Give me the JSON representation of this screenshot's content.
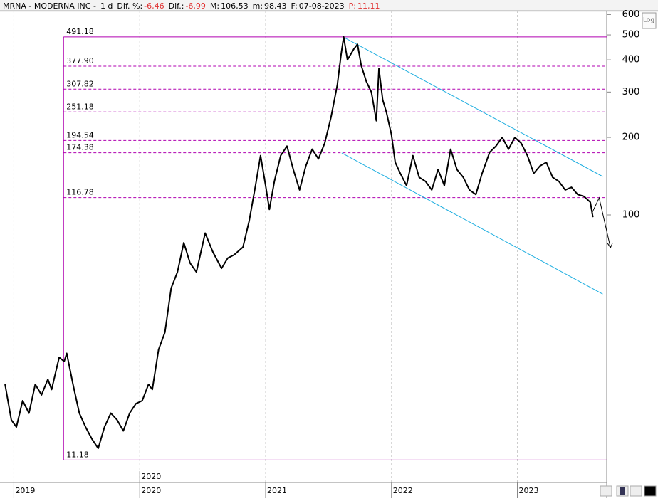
{
  "header": {
    "symbol": "MRNA - MODERNA INC -",
    "period": "1 d",
    "dif_pct_label": "Dif. %:",
    "dif_pct": "-6,46",
    "dif_label": "Dif.:",
    "dif": "-6,99",
    "max_label": "M:",
    "max": "106,53",
    "min_label": "m:",
    "min": "98,43",
    "date_label": "F:",
    "date": "07-08-2023",
    "p_label": "P:",
    "p": "11,11"
  },
  "log_button": "Log",
  "chart_data": {
    "type": "line",
    "log_scale": true,
    "color": "#000000",
    "xlim": [
      2018.89,
      2023.71
    ],
    "xticks": [
      2019,
      2020,
      2021,
      2022,
      2023
    ],
    "ylim": [
      9.14,
      621
    ],
    "yticks": [
      100,
      200,
      300,
      400,
      500,
      600
    ],
    "x_marker": {
      "value": 2020,
      "label": "2020"
    },
    "series": [
      {
        "name": "MRNA",
        "color": "#000000",
        "x": [
          2018.93,
          2018.98,
          2019.02,
          2019.07,
          2019.12,
          2019.17,
          2019.22,
          2019.27,
          2019.3,
          2019.36,
          2019.4,
          2019.42,
          2019.47,
          2019.52,
          2019.57,
          2019.62,
          2019.67,
          2019.72,
          2019.77,
          2019.82,
          2019.87,
          2019.92,
          2019.97,
          2020.02,
          2020.07,
          2020.1,
          2020.15,
          2020.2,
          2020.25,
          2020.3,
          2020.35,
          2020.4,
          2020.45,
          2020.52,
          2020.58,
          2020.65,
          2020.7,
          2020.75,
          2020.82,
          2020.87,
          2020.92,
          2020.96,
          2021.0,
          2021.03,
          2021.07,
          2021.12,
          2021.17,
          2021.22,
          2021.27,
          2021.32,
          2021.37,
          2021.42,
          2021.47,
          2021.52,
          2021.57,
          2021.6,
          2021.62,
          2021.65,
          2021.7,
          2021.73,
          2021.76,
          2021.8,
          2021.84,
          2021.88,
          2021.9,
          2021.93,
          2021.96,
          2022.0,
          2022.03,
          2022.07,
          2022.12,
          2022.17,
          2022.22,
          2022.27,
          2022.32,
          2022.37,
          2022.42,
          2022.47,
          2022.52,
          2022.57,
          2022.62,
          2022.67,
          2022.72,
          2022.78,
          2022.83,
          2022.88,
          2022.93,
          2022.98,
          2023.03,
          2023.08,
          2023.13,
          2023.18,
          2023.23,
          2023.28,
          2023.33,
          2023.38,
          2023.43,
          2023.48,
          2023.53,
          2023.58,
          2023.6
        ],
        "values": [
          22,
          16,
          15,
          19,
          17,
          22,
          20,
          23,
          21,
          28,
          27,
          29,
          22,
          17,
          15,
          13.5,
          12.4,
          15,
          17,
          16,
          14.5,
          17,
          18.5,
          19,
          22,
          21,
          30,
          35,
          52,
          60,
          78,
          65,
          60,
          85,
          72,
          62,
          68,
          70,
          75,
          95,
          130,
          170,
          130,
          105,
          135,
          170,
          185,
          150,
          125,
          155,
          180,
          165,
          190,
          240,
          320,
          420,
          491,
          400,
          440,
          460,
          380,
          330,
          300,
          232,
          370,
          280,
          250,
          205,
          160,
          145,
          130,
          170,
          140,
          135,
          125,
          150,
          130,
          180,
          150,
          140,
          125,
          120,
          145,
          175,
          185,
          200,
          180,
          200,
          190,
          170,
          145,
          155,
          160,
          140,
          135,
          125,
          128,
          120,
          118,
          112,
          98
        ]
      }
    ],
    "fib_start_x": 2019.395,
    "levels": [
      491.18,
      {
        "value": 377.9,
        "label": "377.90"
      },
      307.82,
      251.18,
      194.54,
      174.38,
      116.78,
      11.18
    ],
    "channel": [
      {
        "x": [
          2021.616,
          2023.678
        ],
        "y": [
          491,
          141
        ]
      },
      {
        "x": [
          2021.605,
          2023.678
        ],
        "y": [
          174,
          49.3
        ]
      }
    ],
    "projection": {
      "x": [
        2023.59,
        2023.65,
        2023.74
      ],
      "y": [
        101,
        116.5,
        74.6
      ]
    }
  }
}
